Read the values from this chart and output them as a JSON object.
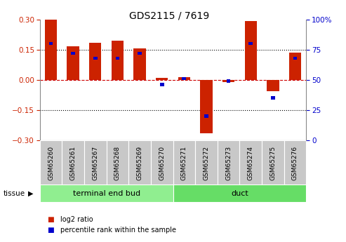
{
  "title": "GDS2115 / 7619",
  "samples": [
    "GSM65260",
    "GSM65261",
    "GSM65267",
    "GSM65268",
    "GSM65269",
    "GSM65270",
    "GSM65271",
    "GSM65272",
    "GSM65273",
    "GSM65274",
    "GSM65275",
    "GSM65276"
  ],
  "log2_ratio": [
    0.3,
    0.165,
    0.185,
    0.195,
    0.155,
    0.01,
    0.015,
    -0.265,
    -0.01,
    0.29,
    -0.055,
    0.135
  ],
  "percentile": [
    80,
    72,
    68,
    68,
    72,
    46,
    51,
    20,
    49,
    80,
    35,
    68
  ],
  "groups": [
    {
      "label": "terminal end bud",
      "start": 0,
      "end": 6,
      "color": "#90EE90"
    },
    {
      "label": "duct",
      "start": 6,
      "end": 12,
      "color": "#66DD66"
    }
  ],
  "ylim": [
    -0.3,
    0.3
  ],
  "yticks_left": [
    -0.3,
    -0.15,
    0.0,
    0.15,
    0.3
  ],
  "yticks_right": [
    0,
    25,
    50,
    75,
    100
  ],
  "bar_color": "#CC2200",
  "percentile_color": "#0000CC",
  "zero_line_color": "#CC0000",
  "bg_color": "#FFFFFF",
  "bar_width": 0.55,
  "percentile_bar_width": 0.18,
  "percentile_bar_height": 0.016,
  "tissue_label": "tissue",
  "legend_log2": "log2 ratio",
  "legend_pct": "percentile rank within the sample",
  "gray_color": "#C8C8C8",
  "label_fontsize": 6.5,
  "title_fontsize": 10
}
